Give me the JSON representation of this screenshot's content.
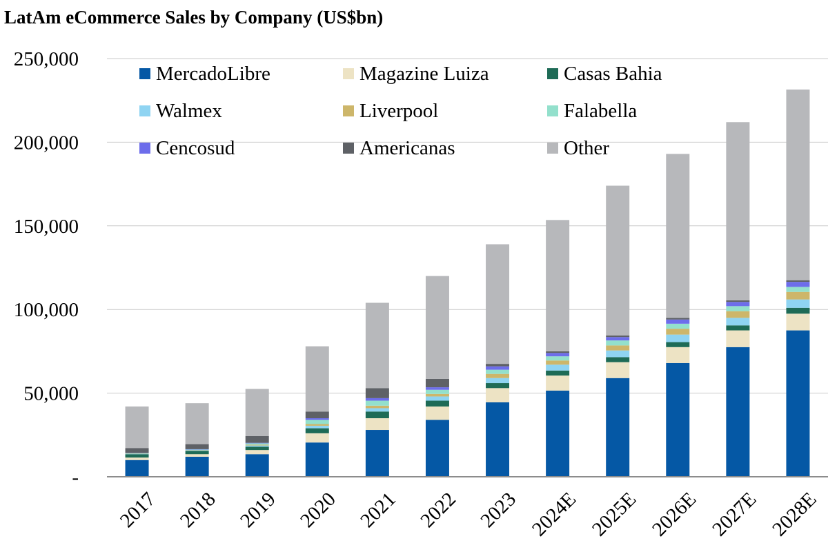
{
  "chart_data": {
    "type": "bar",
    "stacked": true,
    "title": "LatAm eCommerce Sales by Company (US$bn)",
    "xlabel": "",
    "ylabel": "",
    "ylim": [
      0,
      250000
    ],
    "yticks": [
      0,
      50000,
      100000,
      150000,
      200000,
      250000
    ],
    "ytick_labels": [
      "-",
      "50,000",
      "100,000",
      "150,000",
      "200,000",
      "250,000"
    ],
    "grid": true,
    "legend_position": "top-left",
    "categories": [
      "2017",
      "2018",
      "2019",
      "2020",
      "2021",
      "2022",
      "2023",
      "2024E",
      "2025E",
      "2026E",
      "2027E",
      "2028E"
    ],
    "series": [
      {
        "name": "MercadoLibre",
        "color": "#0558A5",
        "values": [
          10000,
          12000,
          13500,
          20500,
          28000,
          34000,
          44500,
          51500,
          59000,
          68000,
          77500,
          87500
        ]
      },
      {
        "name": "Magazine Luiza",
        "color": "#EDE3C4",
        "values": [
          1500,
          1500,
          2500,
          5500,
          7000,
          8000,
          8500,
          9000,
          9500,
          9500,
          10000,
          10000
        ]
      },
      {
        "name": "Casas Bahia",
        "color": "#1E6B56",
        "values": [
          2000,
          2000,
          2000,
          3000,
          4000,
          3500,
          3000,
          3000,
          3000,
          3000,
          3000,
          3500
        ]
      },
      {
        "name": "Walmex",
        "color": "#8FD4F2",
        "values": [
          200,
          300,
          700,
          1500,
          2000,
          2500,
          3000,
          3500,
          4000,
          4500,
          4500,
          5000
        ]
      },
      {
        "name": "Liverpool",
        "color": "#CDB66A",
        "values": [
          100,
          200,
          500,
          1000,
          1500,
          1500,
          2500,
          2500,
          3000,
          3500,
          4000,
          4500
        ]
      },
      {
        "name": "Falabella",
        "color": "#93E0CC",
        "values": [
          300,
          300,
          800,
          2500,
          3000,
          2500,
          2500,
          2500,
          3000,
          3000,
          3000,
          3000
        ]
      },
      {
        "name": "Cencosud",
        "color": "#6D6DEB",
        "values": [
          100,
          200,
          300,
          1000,
          1500,
          1500,
          2000,
          2000,
          2000,
          2500,
          2500,
          3000
        ]
      },
      {
        "name": "Americanas",
        "color": "#5E6166",
        "values": [
          3000,
          3000,
          4000,
          4000,
          6000,
          5000,
          1500,
          1000,
          1000,
          1000,
          1000,
          1000
        ]
      },
      {
        "name": "Other",
        "color": "#B7B8BB",
        "values": [
          24800,
          24500,
          28200,
          39000,
          51000,
          61500,
          71500,
          78500,
          89500,
          98000,
          106500,
          114000
        ]
      }
    ]
  }
}
